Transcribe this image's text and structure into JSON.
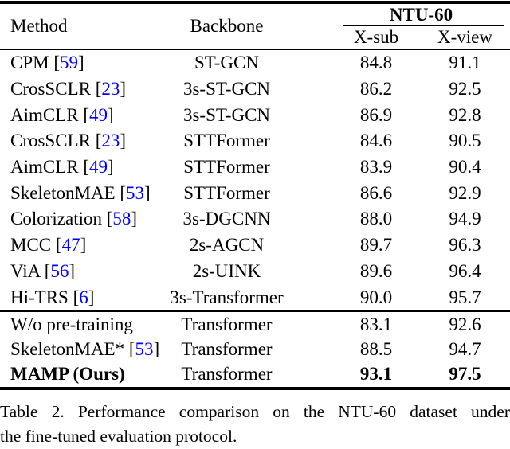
{
  "header": {
    "col_method": "Method",
    "col_backbone": "Backbone",
    "group_title": "NTU-60",
    "col_xsub": "X-sub",
    "col_xview": "X-view"
  },
  "rows_top": [
    {
      "method": "CPM",
      "cite": "59",
      "backbone": "ST-GCN",
      "xsub": "84.8",
      "xview": "91.1",
      "bold": false
    },
    {
      "method": "CrosSCLR",
      "cite": "23",
      "backbone": "3s-ST-GCN",
      "xsub": "86.2",
      "xview": "92.5",
      "bold": false
    },
    {
      "method": "AimCLR",
      "cite": "49",
      "backbone": "3s-ST-GCN",
      "xsub": "86.9",
      "xview": "92.8",
      "bold": false
    },
    {
      "method": "CrosSCLR",
      "cite": "23",
      "backbone": "STTFormer",
      "xsub": "84.6",
      "xview": "90.5",
      "bold": false
    },
    {
      "method": "AimCLR",
      "cite": "49",
      "backbone": "STTFormer",
      "xsub": "83.9",
      "xview": "90.4",
      "bold": false
    },
    {
      "method": "SkeletonMAE",
      "cite": "53",
      "backbone": "STTFormer",
      "xsub": "86.6",
      "xview": "92.9",
      "bold": false
    },
    {
      "method": "Colorization",
      "cite": "58",
      "backbone": "3s-DGCNN",
      "xsub": "88.0",
      "xview": "94.9",
      "bold": false
    },
    {
      "method": "MCC",
      "cite": "47",
      "backbone": "2s-AGCN",
      "xsub": "89.7",
      "xview": "96.3",
      "bold": false
    },
    {
      "method": "ViA",
      "cite": "56",
      "backbone": "2s-UINK",
      "xsub": "89.6",
      "xview": "96.4",
      "bold": false
    },
    {
      "method": "Hi-TRS",
      "cite": "6",
      "backbone": "3s-Transformer",
      "xsub": "90.0",
      "xview": "95.7",
      "bold": false
    }
  ],
  "rows_bottom": [
    {
      "method": "W/o pre-training",
      "cite": "",
      "backbone": "Transformer",
      "xsub": "83.1",
      "xview": "92.6",
      "bold": false
    },
    {
      "method": "SkeletonMAE*",
      "cite": "53",
      "backbone": "Transformer",
      "xsub": "88.5",
      "xview": "94.7",
      "bold": false
    },
    {
      "method": "MAMP (Ours)",
      "cite": "",
      "backbone": "Transformer",
      "xsub": "93.1",
      "xview": "97.5",
      "bold": true
    }
  ],
  "caption": {
    "line1": "Table 2.  Performance comparison on the NTU-60 dataset under",
    "line2": "the fine-tuned evaluation protocol."
  },
  "colors": {
    "citation_blue": "#0000EE",
    "text": "#000000"
  }
}
